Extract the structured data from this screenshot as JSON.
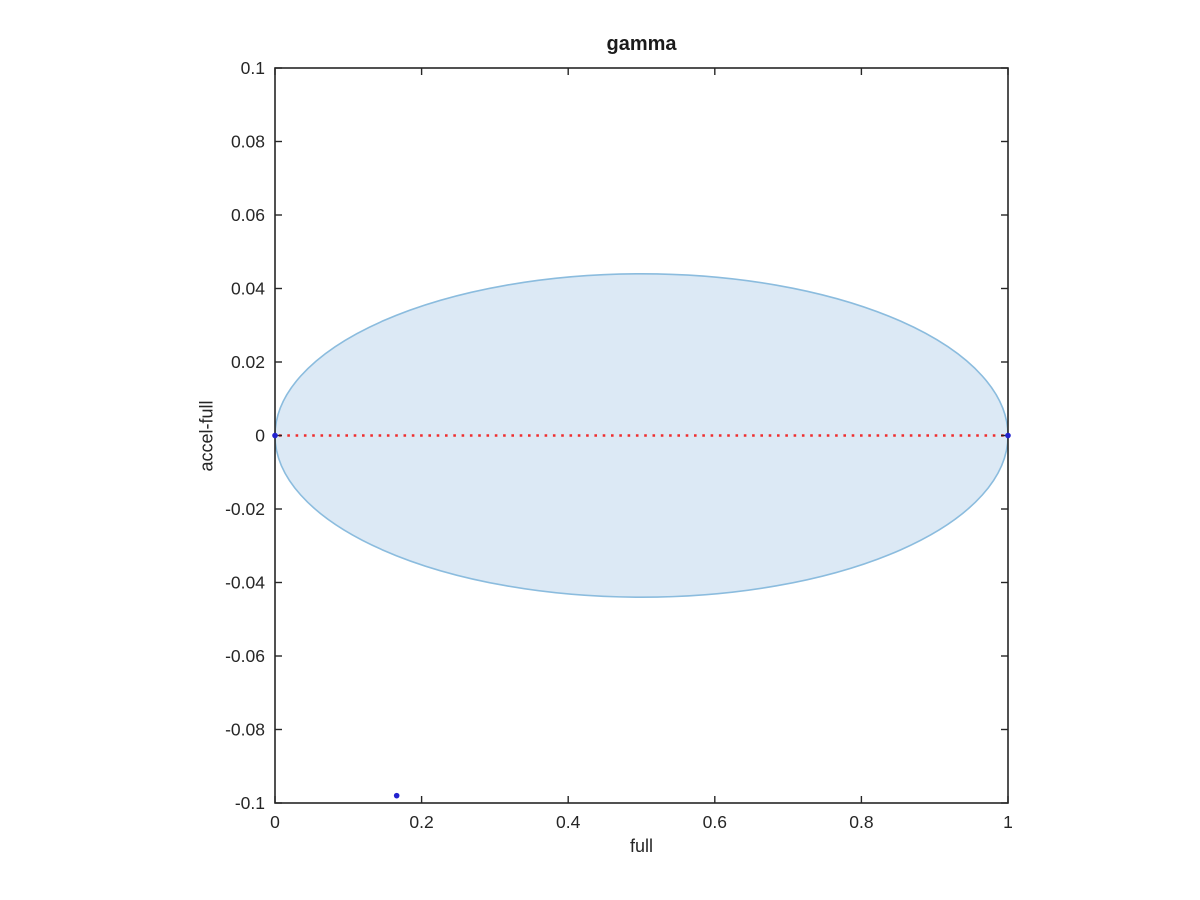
{
  "chart_data": {
    "type": "scatter",
    "title": "gamma",
    "xlabel": "full",
    "ylabel": "accel-full",
    "xlim": [
      0,
      1
    ],
    "ylim": [
      -0.1,
      0.1
    ],
    "grid": false,
    "box": true,
    "axis_color": "#262626",
    "xticks": [
      0,
      0.2,
      0.4,
      0.6,
      0.8,
      1
    ],
    "xtick_labels": [
      "0",
      "0.2",
      "0.4",
      "0.6",
      "0.8",
      "1"
    ],
    "yticks": [
      -0.1,
      -0.08,
      -0.06,
      -0.04,
      -0.02,
      0,
      0.02,
      0.04,
      0.06,
      0.08,
      0.1
    ],
    "ytick_labels": [
      "-0.1",
      "-0.08",
      "-0.06",
      "-0.04",
      "-0.02",
      "0",
      "0.02",
      "0.04",
      "0.06",
      "0.08",
      "0.1"
    ],
    "region": {
      "shape": "ellipse",
      "center": [
        0.5,
        0
      ],
      "rx": 0.5,
      "ry": 0.044,
      "fill": "#dce9f5",
      "stroke": "#8bbcde"
    },
    "zero_line": {
      "style": "dotted",
      "color": "#ef2e2e",
      "y": 0,
      "x_start": 0,
      "x_end": 1
    },
    "points": {
      "color": "#2222cf",
      "coords": [
        [
          0,
          0
        ],
        [
          1,
          0
        ],
        [
          0.166,
          -0.098
        ]
      ]
    }
  }
}
